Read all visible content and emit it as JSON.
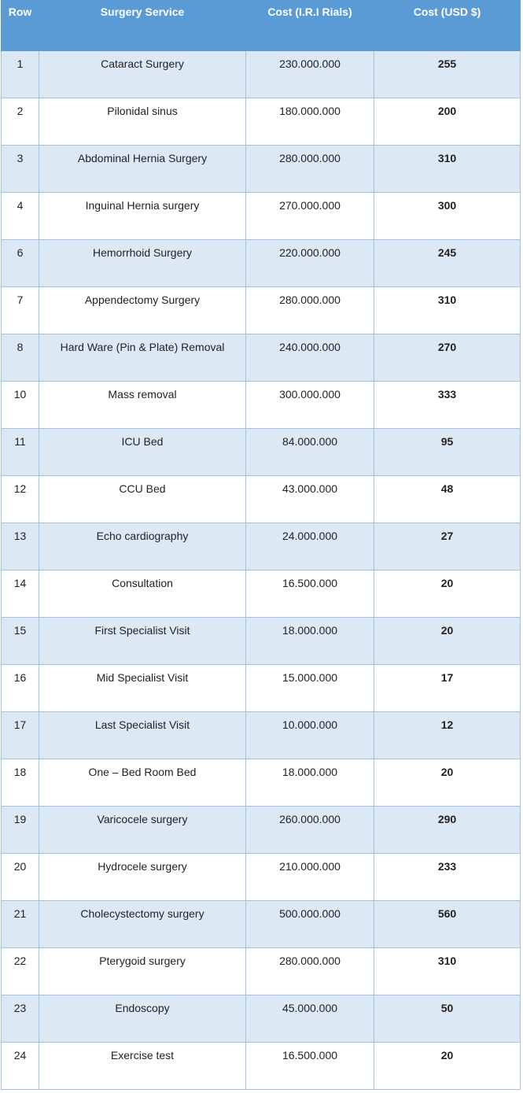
{
  "table": {
    "header": [
      "Row",
      "Surgery Service",
      "Cost (I.R.I Rials)",
      "Cost (USD $)"
    ],
    "rows": [
      [
        1,
        "Cataract Surgery",
        "230.000.000",
        255
      ],
      [
        2,
        "Pilonidal sinus",
        "180.000.000",
        200
      ],
      [
        3,
        "Abdominal Hernia Surgery",
        "280.000.000",
        310
      ],
      [
        4,
        "Inguinal Hernia surgery",
        "270.000.000",
        300
      ],
      [
        6,
        "Hemorrhoid Surgery",
        "220.000.000",
        245
      ],
      [
        7,
        "Appendectomy Surgery",
        "280.000.000",
        310
      ],
      [
        8,
        "Hard Ware (Pin & Plate) Removal",
        "240.000.000",
        270
      ],
      [
        10,
        "Mass removal",
        "300.000.000",
        333
      ],
      [
        11,
        "ICU Bed",
        "84.000.000",
        95
      ],
      [
        12,
        "CCU Bed",
        "43.000.000",
        48
      ],
      [
        13,
        "Echo cardiography",
        "24.000.000",
        27
      ],
      [
        14,
        "Consultation",
        "16.500.000",
        20
      ],
      [
        15,
        "First Specialist Visit",
        "18.000.000",
        20
      ],
      [
        16,
        "Mid Specialist Visit",
        "15.000.000",
        17
      ],
      [
        17,
        "Last Specialist Visit",
        "10.000.000",
        12
      ],
      [
        18,
        "One – Bed Room Bed",
        "18.000.000",
        20
      ],
      [
        19,
        "Varicocele surgery",
        "260.000.000",
        290
      ],
      [
        20,
        "Hydrocele surgery",
        "210.000.000",
        233
      ],
      [
        21,
        "Cholecystectomy surgery",
        "500.000.000",
        560
      ],
      [
        22,
        "Pterygoid surgery",
        "280.000.000",
        310
      ],
      [
        23,
        "Endoscopy",
        "45.000.000",
        50
      ],
      [
        24,
        "Exercise test",
        "16.500.000",
        20
      ]
    ]
  }
}
